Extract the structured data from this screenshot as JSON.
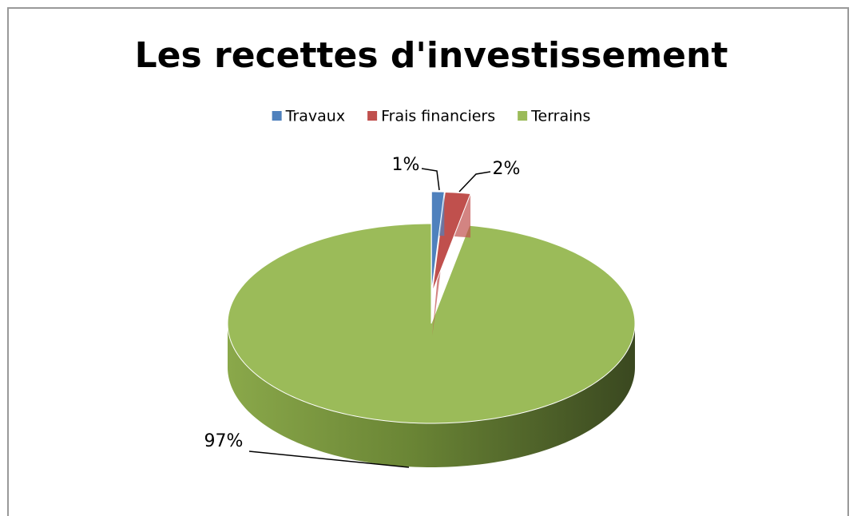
{
  "chart_data": {
    "type": "pie",
    "title": "Les recettes d'investissement",
    "categories": [
      "Travaux",
      "Frais financiers",
      "Terrains"
    ],
    "values": [
      1,
      2,
      97
    ],
    "value_labels": [
      "1%",
      "2%",
      "97%"
    ],
    "colors": [
      "#4f81bd",
      "#c0504d",
      "#9bbb59"
    ],
    "legend": "top"
  }
}
